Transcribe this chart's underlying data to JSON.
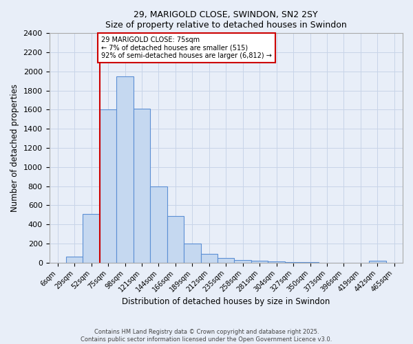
{
  "title": "29, MARIGOLD CLOSE, SWINDON, SN2 2SY",
  "subtitle": "Size of property relative to detached houses in Swindon",
  "xlabel": "Distribution of detached houses by size in Swindon",
  "ylabel": "Number of detached properties",
  "footer_line1": "Contains HM Land Registry data © Crown copyright and database right 2025.",
  "footer_line2": "Contains public sector information licensed under the Open Government Licence v3.0.",
  "bin_labels": [
    "6sqm",
    "29sqm",
    "52sqm",
    "75sqm",
    "98sqm",
    "121sqm",
    "144sqm",
    "166sqm",
    "189sqm",
    "212sqm",
    "235sqm",
    "258sqm",
    "281sqm",
    "304sqm",
    "327sqm",
    "350sqm",
    "373sqm",
    "396sqm",
    "419sqm",
    "442sqm",
    "465sqm"
  ],
  "bar_heights": [
    0,
    60,
    510,
    1600,
    1950,
    1610,
    800,
    490,
    200,
    90,
    50,
    30,
    20,
    10,
    5,
    5,
    0,
    0,
    0,
    20,
    0
  ],
  "bar_color": "#c5d8f0",
  "bar_edge_color": "#5b8fd4",
  "grid_color": "#c8d4e8",
  "background_color": "#e8eef8",
  "red_line_index": 3,
  "red_line_color": "#cc0000",
  "annotation_text": "29 MARIGOLD CLOSE: 75sqm\n← 7% of detached houses are smaller (515)\n92% of semi-detached houses are larger (6,812) →",
  "annotation_box_color": "#cc0000",
  "ylim": [
    0,
    2400
  ],
  "yticks": [
    0,
    200,
    400,
    600,
    800,
    1000,
    1200,
    1400,
    1600,
    1800,
    2000,
    2200,
    2400
  ]
}
